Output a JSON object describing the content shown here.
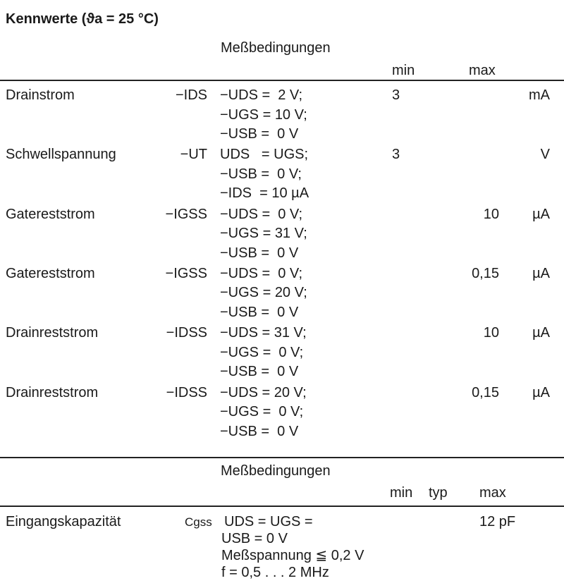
{
  "title": "Kennwerte (ϑa = 25 °C)",
  "table1": {
    "header": {
      "conditions": "Meßbedingungen",
      "min": "min",
      "max": "max"
    },
    "rows": [
      {
        "name": "Drainstrom",
        "symbol": "−IDS",
        "conditions": [
          "−UDS =  2 V;",
          "−UGS = 10 V;",
          "−USB =  0 V"
        ],
        "min": "3",
        "max": "",
        "unit": "mA"
      },
      {
        "name": "Schwellspannung",
        "symbol": "−UT",
        "conditions": [
          "UDS   = UGS;",
          "−USB =  0 V;",
          "−IDS  = 10 µA"
        ],
        "min": "3",
        "max": "",
        "unit": "V"
      },
      {
        "name": "Gatereststrom",
        "symbol": "−IGSS",
        "conditions": [
          "−UDS =  0 V;",
          "−UGS = 31 V;",
          "−USB =  0 V"
        ],
        "min": "",
        "max": "10",
        "unit": "µA"
      },
      {
        "name": "Gatereststrom",
        "symbol": "−IGSS",
        "conditions": [
          "−UDS =  0 V;",
          "−UGS = 20 V;",
          "−USB =  0 V"
        ],
        "min": "",
        "max": "0,15",
        "unit": "µA"
      },
      {
        "name": "Drainreststrom",
        "symbol": "−IDSS",
        "conditions": [
          "−UDS = 31 V;",
          "−UGS =  0 V;",
          "−USB =  0 V"
        ],
        "min": "",
        "max": "10",
        "unit": "µA"
      },
      {
        "name": "Drainreststrom",
        "symbol": "−IDSS",
        "conditions": [
          "−UDS = 20 V;",
          "−UGS =  0 V;",
          "−USB =  0 V"
        ],
        "min": "",
        "max": "0,15",
        "unit": "µA"
      }
    ]
  },
  "table2": {
    "header": {
      "conditions": "Meßbedingungen",
      "min": "min",
      "typ": "typ",
      "max": "max"
    },
    "rows": [
      {
        "name": "Eingangskapazität",
        "symbol": "Cgss",
        "conditions": [
          "UDS = UGS =",
          "USB = 0 V",
          "Meßspannung ≦ 0,2 V",
          "f = 0,5 . . . 2 MHz"
        ],
        "max": "12 pF"
      }
    ]
  }
}
